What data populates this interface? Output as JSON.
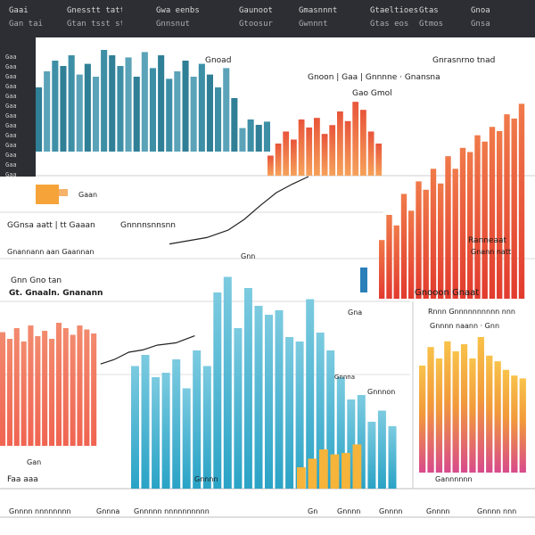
{
  "topbar": {
    "items": [
      "Gaai",
      "Gnesstt tatt",
      "Gwa eenbs",
      "Gaunoot",
      "Gmasnnnt",
      "Gtaeltioes",
      "Gtas",
      "Gnoa"
    ],
    "subitems": [
      "Gan tai",
      "Gtan tsst sttint",
      "Gnnsnut",
      "Gtoosur",
      "Gwnnnt",
      "Gtas eos",
      "Gtmos",
      "Gnsa"
    ]
  },
  "sidebar": {
    "items": [
      "Gaa",
      "Gaa",
      "Gaa",
      "Gaa",
      "Gaa",
      "Gaa",
      "Gaa",
      "Gaa",
      "Gaa",
      "Gaa",
      "Gaa",
      "Gaa",
      "Gaa"
    ]
  },
  "labels": {
    "top_center": "Gnoad",
    "top_right": "Gnrasnrno tnad",
    "mid_header_a": "Gnoon | Gaa | Gnnnne · Gnansna",
    "mid_header_b": "Gao Gmol",
    "swatch_note": "Gaan",
    "left_title": "GGnsa aatt | tt Gaaan",
    "left_sub": "Gnnnnsnnsnn",
    "left_caption": "Gnannann aan Gaannan",
    "right_caption": "Ranneaat",
    "right_caption_sub": "Gnann natt",
    "label_ga": "Gnn",
    "mid_left_title": "Gnn Gno tan",
    "mid_left_sub": "Gt. Gnaaln. Gnanann",
    "center_title": "Gnooon Gnaat",
    "small_ea": "Gna",
    "right_panel_title": "Rnnn Gnnnnnnnnnn nnn",
    "right_panel_sub": "Gnnnn naann · Gnn",
    "center_caption_a": "Gnnna",
    "center_caption_b": "Gnnnon",
    "bottom_left_a": "Gan",
    "bottom_left_b": "Faa aaa",
    "bottom_mid": "Gnnnn",
    "bottom_right": "Gannnnnn",
    "footer": [
      "Gnnnn nnnnnnnn",
      "Gnnna",
      "Gnnnnn nnnnnnnnnn",
      "Gn",
      "Gnnnn",
      "Gnnnn",
      "Gnnnn",
      "Gnnnn nnn"
    ]
  },
  "chart_data": [
    {
      "type": "bar",
      "panel": "top-left",
      "values": [
        0.6,
        0.75,
        0.85,
        0.8,
        0.9,
        0.72,
        0.82,
        0.7,
        0.95,
        0.9,
        0.8,
        0.88,
        0.7,
        0.93,
        0.78,
        0.9,
        0.68,
        0.75,
        0.85,
        0.7,
        0.82,
        0.72,
        0.6,
        0.78,
        0.5,
        0.22,
        0.3,
        0.25,
        0.28
      ],
      "colors": {
        "primary": "#3d8fa6",
        "secondary": "#5ba3b8"
      }
    },
    {
      "type": "bar",
      "panel": "top-middle",
      "values": [
        0.25,
        0.4,
        0.55,
        0.45,
        0.7,
        0.6,
        0.72,
        0.52,
        0.63,
        0.8,
        0.68,
        0.92,
        0.82,
        0.55,
        0.4
      ],
      "colors": {
        "start": "#f6a15a",
        "end": "#e8553a"
      }
    },
    {
      "type": "bar",
      "panel": "right",
      "values": [
        0.28,
        0.4,
        0.35,
        0.5,
        0.42,
        0.56,
        0.52,
        0.62,
        0.55,
        0.68,
        0.62,
        0.72,
        0.7,
        0.78,
        0.75,
        0.82,
        0.8,
        0.88,
        0.86,
        0.93
      ],
      "colors": {
        "start": "#e23b2e",
        "end": "#f07a4a"
      }
    },
    {
      "type": "bar",
      "panel": "mid-left",
      "values": [
        0.85,
        0.8,
        0.88,
        0.78,
        0.9,
        0.82,
        0.86,
        0.8,
        0.92,
        0.88,
        0.83,
        0.9,
        0.87,
        0.84
      ],
      "colors": {
        "start": "#f06451",
        "end": "#f28a6e"
      }
    },
    {
      "type": "bar",
      "panel": "center",
      "values": [
        0.55,
        0.6,
        0.5,
        0.52,
        0.58,
        0.45,
        0.62,
        0.55,
        0.88,
        0.95,
        0.72,
        0.9,
        0.82,
        0.78,
        0.8,
        0.68,
        0.66,
        0.85,
        0.7,
        0.62,
        0.5,
        0.4,
        0.42,
        0.3,
        0.35,
        0.28
      ],
      "colors": {
        "start": "#2aa3c6",
        "end": "#7ccbe0"
      }
    },
    {
      "type": "bar",
      "panel": "center-orange",
      "values": [
        0.3,
        0.42,
        0.55,
        0.48,
        0.5,
        0.62
      ],
      "colors": {
        "fill": "#f6b43a"
      }
    },
    {
      "type": "bar",
      "panel": "bottom-right",
      "values": [
        0.75,
        0.88,
        0.8,
        0.92,
        0.85,
        0.9,
        0.8,
        0.95,
        0.82,
        0.78,
        0.72,
        0.68,
        0.66
      ],
      "colors": {
        "top": "#f8c24a",
        "bottom": "#d84a8c"
      }
    }
  ],
  "lines": [
    {
      "name": "",
      "points": [
        [
          0.3,
          0.78
        ],
        [
          0.44,
          0.72
        ],
        [
          0.52,
          0.65
        ],
        [
          0.58,
          0.55
        ],
        [
          0.64,
          0.42
        ],
        [
          0.7,
          0.3
        ],
        [
          0.76,
          0.22
        ],
        [
          0.82,
          0.15
        ]
      ]
    },
    {
      "name": "",
      "points": [
        [
          0.2,
          0.82
        ],
        [
          0.26,
          0.78
        ],
        [
          0.32,
          0.72
        ],
        [
          0.38,
          0.7
        ],
        [
          0.44,
          0.66
        ],
        [
          0.52,
          0.64
        ],
        [
          0.6,
          0.58
        ]
      ]
    }
  ]
}
